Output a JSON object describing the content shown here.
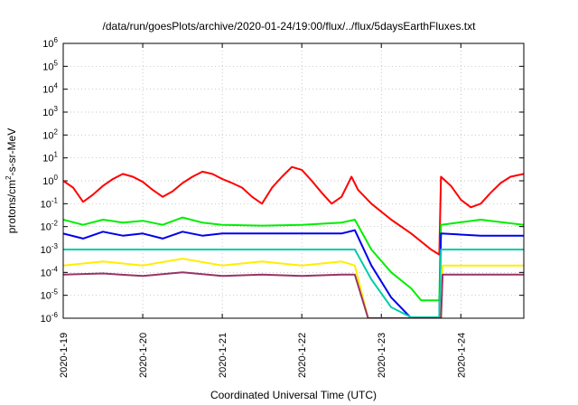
{
  "chart_data": {
    "type": "line",
    "title": "/data/run/goesPlots/archive/2020-01-24/19:00/flux/../flux/5daysEarthFluxes.txt",
    "xlabel": "Coordinated Universal Time (UTC)",
    "ylabel_prefix": "protons/cm",
    "ylabel_sup": "2",
    "ylabel_suffix": "-s-sr-MeV",
    "y_scale": "log",
    "ylim": [
      1e-06,
      1000000.0
    ],
    "y_ticks": [
      {
        "base": "10",
        "exp": "-6",
        "value": 1e-06
      },
      {
        "base": "10",
        "exp": "-5",
        "value": 1e-05
      },
      {
        "base": "10",
        "exp": "-4",
        "value": 0.0001
      },
      {
        "base": "10",
        "exp": "-3",
        "value": 0.001
      },
      {
        "base": "10",
        "exp": "-2",
        "value": 0.01
      },
      {
        "base": "10",
        "exp": "-1",
        "value": 0.1
      },
      {
        "base": "10",
        "exp": "0",
        "value": 1
      },
      {
        "base": "10",
        "exp": "1",
        "value": 10
      },
      {
        "base": "10",
        "exp": "2",
        "value": 100
      },
      {
        "base": "10",
        "exp": "3",
        "value": 1000
      },
      {
        "base": "10",
        "exp": "4",
        "value": 10000
      },
      {
        "base": "10",
        "exp": "5",
        "value": 100000
      },
      {
        "base": "10",
        "exp": "6",
        "value": 1000000
      }
    ],
    "x_ticks": [
      "2020-1-19",
      "2020-1-20",
      "2020-1-21",
      "2020-1-22",
      "2020-1-23",
      "2020-1-24"
    ],
    "xlim": [
      "2020-01-19 00:00",
      "2020-01-24 19:00"
    ],
    "grid": true,
    "series": [
      {
        "color": "#ff0000",
        "points": [
          [
            "2020-01-19 00:00",
            1.0
          ],
          [
            "2020-01-19 03:00",
            0.5
          ],
          [
            "2020-01-19 06:00",
            0.12
          ],
          [
            "2020-01-19 09:00",
            0.25
          ],
          [
            "2020-01-19 12:00",
            0.6
          ],
          [
            "2020-01-19 15:00",
            1.2
          ],
          [
            "2020-01-19 18:00",
            2.0
          ],
          [
            "2020-01-19 21:00",
            1.5
          ],
          [
            "2020-01-20 00:00",
            0.9
          ],
          [
            "2020-01-20 03:00",
            0.4
          ],
          [
            "2020-01-20 06:00",
            0.2
          ],
          [
            "2020-01-20 09:00",
            0.35
          ],
          [
            "2020-01-20 12:00",
            0.8
          ],
          [
            "2020-01-20 15:00",
            1.5
          ],
          [
            "2020-01-20 18:00",
            2.5
          ],
          [
            "2020-01-20 21:00",
            2.0
          ],
          [
            "2020-01-21 00:00",
            1.2
          ],
          [
            "2020-01-21 03:00",
            0.8
          ],
          [
            "2020-01-21 06:00",
            0.5
          ],
          [
            "2020-01-21 09:00",
            0.2
          ],
          [
            "2020-01-21 12:00",
            0.1
          ],
          [
            "2020-01-21 15:00",
            0.5
          ],
          [
            "2020-01-21 18:00",
            1.5
          ],
          [
            "2020-01-21 21:00",
            4.0
          ],
          [
            "2020-01-22 00:00",
            3.0
          ],
          [
            "2020-01-22 03:00",
            1.0
          ],
          [
            "2020-01-22 06:00",
            0.3
          ],
          [
            "2020-01-22 09:00",
            0.1
          ],
          [
            "2020-01-22 12:00",
            0.2
          ],
          [
            "2020-01-22 15:00",
            1.5
          ],
          [
            "2020-01-22 17:00",
            0.4
          ],
          [
            "2020-01-22 21:00",
            0.1
          ],
          [
            "2020-01-23 03:00",
            0.02
          ],
          [
            "2020-01-23 09:00",
            0.005
          ],
          [
            "2020-01-23 15:00",
            0.001
          ],
          [
            "2020-01-23 17:30",
            0.0006
          ],
          [
            "2020-01-23 18:00",
            1.5
          ],
          [
            "2020-01-23 21:00",
            0.6
          ],
          [
            "2020-01-24 00:00",
            0.15
          ],
          [
            "2020-01-24 03:00",
            0.07
          ],
          [
            "2020-01-24 06:00",
            0.1
          ],
          [
            "2020-01-24 09:00",
            0.3
          ],
          [
            "2020-01-24 12:00",
            0.8
          ],
          [
            "2020-01-24 15:00",
            1.5
          ],
          [
            "2020-01-24 19:00",
            2.0
          ]
        ]
      },
      {
        "color": "#00ee00",
        "points": [
          [
            "2020-01-19 00:00",
            0.02
          ],
          [
            "2020-01-19 06:00",
            0.012
          ],
          [
            "2020-01-19 12:00",
            0.02
          ],
          [
            "2020-01-19 18:00",
            0.015
          ],
          [
            "2020-01-20 00:00",
            0.018
          ],
          [
            "2020-01-20 06:00",
            0.012
          ],
          [
            "2020-01-20 12:00",
            0.025
          ],
          [
            "2020-01-20 18:00",
            0.015
          ],
          [
            "2020-01-21 00:00",
            0.012
          ],
          [
            "2020-01-21 12:00",
            0.011
          ],
          [
            "2020-01-22 00:00",
            0.012
          ],
          [
            "2020-01-22 12:00",
            0.015
          ],
          [
            "2020-01-22 16:00",
            0.02
          ],
          [
            "2020-01-22 21:00",
            0.001
          ],
          [
            "2020-01-23 03:00",
            0.0001
          ],
          [
            "2020-01-23 09:00",
            2e-05
          ],
          [
            "2020-01-23 12:00",
            6e-06
          ],
          [
            "2020-01-23 17:30",
            6e-06
          ],
          [
            "2020-01-23 18:00",
            0.012
          ],
          [
            "2020-01-24 06:00",
            0.02
          ],
          [
            "2020-01-24 19:00",
            0.012
          ]
        ]
      },
      {
        "color": "#0000ee",
        "points": [
          [
            "2020-01-19 00:00",
            0.005
          ],
          [
            "2020-01-19 06:00",
            0.003
          ],
          [
            "2020-01-19 12:00",
            0.006
          ],
          [
            "2020-01-19 18:00",
            0.004
          ],
          [
            "2020-01-20 00:00",
            0.005
          ],
          [
            "2020-01-20 06:00",
            0.003
          ],
          [
            "2020-01-20 12:00",
            0.006
          ],
          [
            "2020-01-20 18:00",
            0.004
          ],
          [
            "2020-01-21 00:00",
            0.005
          ],
          [
            "2020-01-21 12:00",
            0.005
          ],
          [
            "2020-01-22 00:00",
            0.005
          ],
          [
            "2020-01-22 12:00",
            0.005
          ],
          [
            "2020-01-22 16:00",
            0.007
          ],
          [
            "2020-01-22 21:00",
            0.0002
          ],
          [
            "2020-01-23 03:00",
            8e-06
          ],
          [
            "2020-01-23 09:00",
            1e-06
          ],
          [
            "2020-01-23 17:30",
            1e-06
          ],
          [
            "2020-01-23 18:00",
            0.005
          ],
          [
            "2020-01-24 06:00",
            0.004
          ],
          [
            "2020-01-24 19:00",
            0.004
          ]
        ]
      },
      {
        "color": "#00ccaa",
        "points": [
          [
            "2020-01-19 00:00",
            0.001
          ],
          [
            "2020-01-20 00:00",
            0.001
          ],
          [
            "2020-01-21 00:00",
            0.001
          ],
          [
            "2020-01-22 00:00",
            0.001
          ],
          [
            "2020-01-22 16:00",
            0.001
          ],
          [
            "2020-01-22 21:00",
            5e-05
          ],
          [
            "2020-01-23 03:00",
            3e-06
          ],
          [
            "2020-01-23 09:00",
            1.1e-06
          ],
          [
            "2020-01-23 17:30",
            1.1e-06
          ],
          [
            "2020-01-23 18:00",
            0.001
          ],
          [
            "2020-01-24 19:00",
            0.001
          ]
        ]
      },
      {
        "color": "#ffee00",
        "points": [
          [
            "2020-01-19 00:00",
            0.0002
          ],
          [
            "2020-01-19 12:00",
            0.0003
          ],
          [
            "2020-01-20 00:00",
            0.0002
          ],
          [
            "2020-01-20 12:00",
            0.0004
          ],
          [
            "2020-01-21 00:00",
            0.0002
          ],
          [
            "2020-01-21 12:00",
            0.0003
          ],
          [
            "2020-01-22 00:00",
            0.0002
          ],
          [
            "2020-01-22 12:00",
            0.0003
          ],
          [
            "2020-01-22 16:00",
            0.0002
          ],
          [
            "2020-01-22 20:00",
            9e-07
          ],
          [
            "2020-01-23 18:00",
            9e-07
          ],
          [
            "2020-01-23 18:30",
            0.0002
          ],
          [
            "2020-01-24 19:00",
            0.0002
          ]
        ]
      },
      {
        "color": "#993366",
        "points": [
          [
            "2020-01-19 00:00",
            8e-05
          ],
          [
            "2020-01-19 12:00",
            9e-05
          ],
          [
            "2020-01-20 00:00",
            7e-05
          ],
          [
            "2020-01-20 12:00",
            0.0001
          ],
          [
            "2020-01-21 00:00",
            7e-05
          ],
          [
            "2020-01-21 12:00",
            8e-05
          ],
          [
            "2020-01-22 00:00",
            7e-05
          ],
          [
            "2020-01-22 12:00",
            8e-05
          ],
          [
            "2020-01-22 16:00",
            8e-05
          ],
          [
            "2020-01-22 20:00",
            9e-07
          ],
          [
            "2020-01-23 18:00",
            9e-07
          ],
          [
            "2020-01-23 18:30",
            8e-05
          ],
          [
            "2020-01-24 19:00",
            8e-05
          ]
        ]
      }
    ]
  }
}
